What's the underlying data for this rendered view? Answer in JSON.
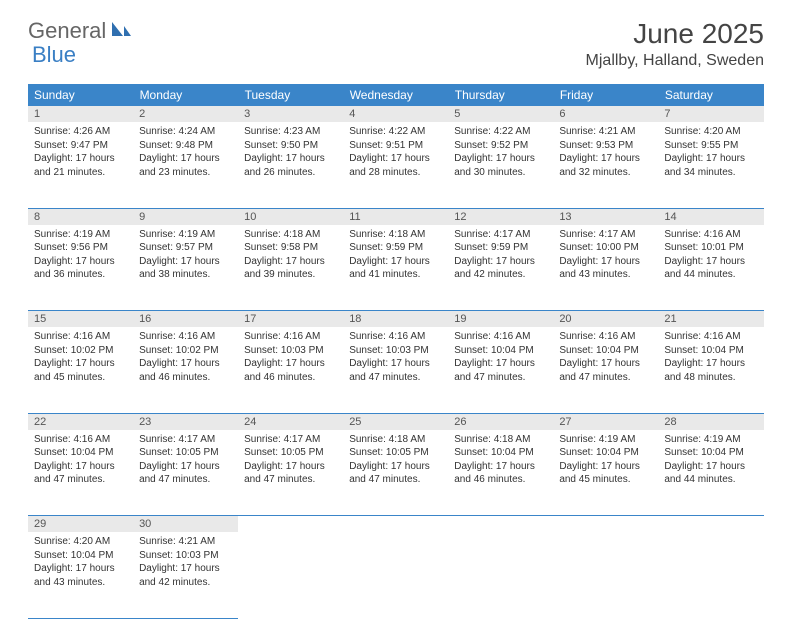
{
  "logo": {
    "part1": "General",
    "part2": "Blue"
  },
  "title": "June 2025",
  "location": "Mjallby, Halland, Sweden",
  "headers": [
    "Sunday",
    "Monday",
    "Tuesday",
    "Wednesday",
    "Thursday",
    "Friday",
    "Saturday"
  ],
  "style": {
    "header_bg": "#3a85c9",
    "header_fg": "#ffffff",
    "daynum_bg": "#e9e9e9",
    "border_color": "#3a85c9",
    "logo_accent": "#3a7fc4",
    "text_color": "#333333",
    "page_bg": "#ffffff",
    "title_fontsize": 28,
    "location_fontsize": 16,
    "header_fontsize": 12,
    "daynum_fontsize": 11,
    "body_fontsize": 10
  },
  "weeks": [
    [
      {
        "n": "1",
        "sr": "4:26 AM",
        "ss": "9:47 PM",
        "dl": "17 hours and 21 minutes."
      },
      {
        "n": "2",
        "sr": "4:24 AM",
        "ss": "9:48 PM",
        "dl": "17 hours and 23 minutes."
      },
      {
        "n": "3",
        "sr": "4:23 AM",
        "ss": "9:50 PM",
        "dl": "17 hours and 26 minutes."
      },
      {
        "n": "4",
        "sr": "4:22 AM",
        "ss": "9:51 PM",
        "dl": "17 hours and 28 minutes."
      },
      {
        "n": "5",
        "sr": "4:22 AM",
        "ss": "9:52 PM",
        "dl": "17 hours and 30 minutes."
      },
      {
        "n": "6",
        "sr": "4:21 AM",
        "ss": "9:53 PM",
        "dl": "17 hours and 32 minutes."
      },
      {
        "n": "7",
        "sr": "4:20 AM",
        "ss": "9:55 PM",
        "dl": "17 hours and 34 minutes."
      }
    ],
    [
      {
        "n": "8",
        "sr": "4:19 AM",
        "ss": "9:56 PM",
        "dl": "17 hours and 36 minutes."
      },
      {
        "n": "9",
        "sr": "4:19 AM",
        "ss": "9:57 PM",
        "dl": "17 hours and 38 minutes."
      },
      {
        "n": "10",
        "sr": "4:18 AM",
        "ss": "9:58 PM",
        "dl": "17 hours and 39 minutes."
      },
      {
        "n": "11",
        "sr": "4:18 AM",
        "ss": "9:59 PM",
        "dl": "17 hours and 41 minutes."
      },
      {
        "n": "12",
        "sr": "4:17 AM",
        "ss": "9:59 PM",
        "dl": "17 hours and 42 minutes."
      },
      {
        "n": "13",
        "sr": "4:17 AM",
        "ss": "10:00 PM",
        "dl": "17 hours and 43 minutes."
      },
      {
        "n": "14",
        "sr": "4:16 AM",
        "ss": "10:01 PM",
        "dl": "17 hours and 44 minutes."
      }
    ],
    [
      {
        "n": "15",
        "sr": "4:16 AM",
        "ss": "10:02 PM",
        "dl": "17 hours and 45 minutes."
      },
      {
        "n": "16",
        "sr": "4:16 AM",
        "ss": "10:02 PM",
        "dl": "17 hours and 46 minutes."
      },
      {
        "n": "17",
        "sr": "4:16 AM",
        "ss": "10:03 PM",
        "dl": "17 hours and 46 minutes."
      },
      {
        "n": "18",
        "sr": "4:16 AM",
        "ss": "10:03 PM",
        "dl": "17 hours and 47 minutes."
      },
      {
        "n": "19",
        "sr": "4:16 AM",
        "ss": "10:04 PM",
        "dl": "17 hours and 47 minutes."
      },
      {
        "n": "20",
        "sr": "4:16 AM",
        "ss": "10:04 PM",
        "dl": "17 hours and 47 minutes."
      },
      {
        "n": "21",
        "sr": "4:16 AM",
        "ss": "10:04 PM",
        "dl": "17 hours and 48 minutes."
      }
    ],
    [
      {
        "n": "22",
        "sr": "4:16 AM",
        "ss": "10:04 PM",
        "dl": "17 hours and 47 minutes."
      },
      {
        "n": "23",
        "sr": "4:17 AM",
        "ss": "10:05 PM",
        "dl": "17 hours and 47 minutes."
      },
      {
        "n": "24",
        "sr": "4:17 AM",
        "ss": "10:05 PM",
        "dl": "17 hours and 47 minutes."
      },
      {
        "n": "25",
        "sr": "4:18 AM",
        "ss": "10:05 PM",
        "dl": "17 hours and 47 minutes."
      },
      {
        "n": "26",
        "sr": "4:18 AM",
        "ss": "10:04 PM",
        "dl": "17 hours and 46 minutes."
      },
      {
        "n": "27",
        "sr": "4:19 AM",
        "ss": "10:04 PM",
        "dl": "17 hours and 45 minutes."
      },
      {
        "n": "28",
        "sr": "4:19 AM",
        "ss": "10:04 PM",
        "dl": "17 hours and 44 minutes."
      }
    ],
    [
      {
        "n": "29",
        "sr": "4:20 AM",
        "ss": "10:04 PM",
        "dl": "17 hours and 43 minutes."
      },
      {
        "n": "30",
        "sr": "4:21 AM",
        "ss": "10:03 PM",
        "dl": "17 hours and 42 minutes."
      },
      null,
      null,
      null,
      null,
      null
    ]
  ],
  "labels": {
    "sunrise": "Sunrise:",
    "sunset": "Sunset:",
    "daylight": "Daylight:"
  }
}
